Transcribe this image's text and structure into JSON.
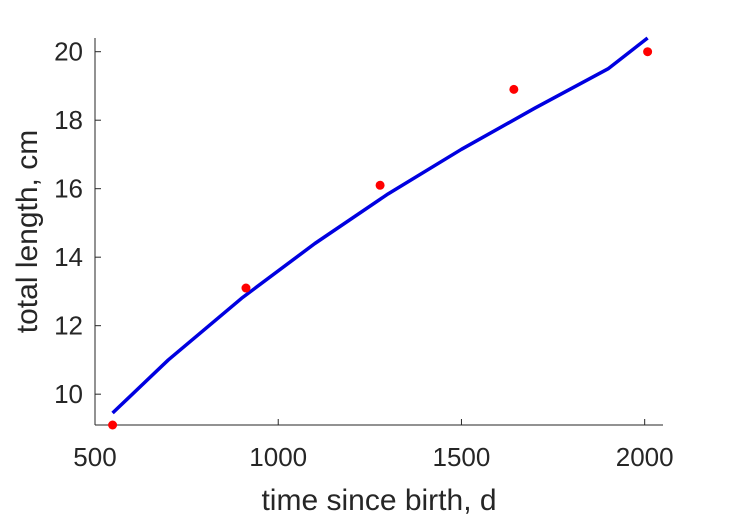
{
  "chart_data": {
    "type": "scatter",
    "title": "",
    "xlabel": "time since birth, d",
    "ylabel": "total length, cm",
    "xlim": [
      500,
      2050
    ],
    "ylim": [
      9.1,
      20.4
    ],
    "xticks": [
      500,
      1000,
      1500,
      2000
    ],
    "yticks": [
      10,
      12,
      14,
      16,
      18,
      20
    ],
    "grid": false,
    "legend": "none",
    "series": [
      {
        "kind": "scatter",
        "color": "#ff0000",
        "x": [
          548,
          912,
          1278,
          1643,
          2008
        ],
        "y": [
          9.1,
          13.1,
          16.1,
          18.9,
          20.0
        ]
      },
      {
        "kind": "line",
        "color": "#0000e0",
        "x": [
          548,
          700,
          900,
          1100,
          1300,
          1500,
          1700,
          1900,
          2008
        ],
        "y": [
          9.45,
          11.0,
          12.8,
          14.4,
          15.85,
          17.15,
          18.35,
          19.5,
          20.4
        ]
      }
    ]
  }
}
